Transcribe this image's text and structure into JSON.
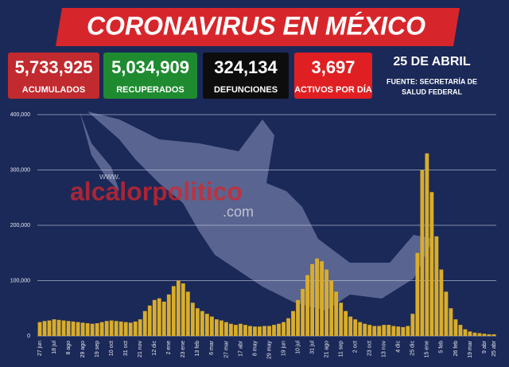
{
  "header": {
    "title": "CORONAVIRUS EN MÉXICO",
    "stats": [
      {
        "value": "5,733,925",
        "label": "ACUMULADOS"
      },
      {
        "value": "5,034,909",
        "label": "RECUPERADOS"
      },
      {
        "value": "324,134",
        "label": "DEFUNCIONES"
      },
      {
        "value": "3,697",
        "label": "ACTIVOS POR DÍA"
      }
    ],
    "date": "25 DE ABRIL",
    "source_lines": [
      "FUENTE: SECRETARÍA DE",
      "SALUD FEDERAL"
    ],
    "watermark": [
      "www.",
      "alcalorpolitico",
      ".com"
    ]
  },
  "chart_data": {
    "type": "bar",
    "color": "#d9ad2b",
    "grid": true,
    "ylim": [
      0,
      400000
    ],
    "yticks": [
      0,
      {
        "value": 100000,
        "label": "100,000"
      },
      {
        "value": 200000,
        "label": "200,000"
      },
      {
        "value": 300000,
        "label": "300,000"
      },
      {
        "value": 400000,
        "label": "400,000"
      }
    ],
    "categories": [
      "27 jun",
      null,
      null,
      "18 jul",
      null,
      null,
      "8 ago",
      null,
      null,
      "29 ago",
      null,
      null,
      "19 sep",
      null,
      null,
      "10 oct",
      null,
      null,
      "31 oct",
      null,
      null,
      "21 nov",
      null,
      null,
      "12 dic",
      null,
      null,
      "2 ene",
      null,
      null,
      "23 ene",
      null,
      null,
      "13 feb",
      null,
      null,
      "6 mar",
      null,
      null,
      "27 mar",
      null,
      null,
      "17 abr",
      null,
      null,
      "8 may",
      null,
      null,
      "29 may",
      null,
      null,
      "19 jun",
      null,
      null,
      "10 jul",
      null,
      null,
      "31 jul",
      null,
      null,
      "21 ago",
      null,
      null,
      "11 sep",
      null,
      null,
      "2 oct",
      null,
      null,
      "23 oct",
      null,
      null,
      "13 nov",
      null,
      null,
      "4 dic",
      null,
      null,
      "25 dic",
      null,
      null,
      "15 ene",
      null,
      null,
      "5 feb",
      null,
      null,
      "26 feb",
      null,
      null,
      "19 mar",
      null,
      null,
      "9 abr",
      null,
      "25 abr"
    ],
    "values": [
      25000,
      27000,
      28000,
      30000,
      29000,
      28000,
      27000,
      26000,
      25000,
      24000,
      23000,
      22000,
      23000,
      25000,
      27000,
      28000,
      27000,
      26000,
      25000,
      24000,
      26000,
      30000,
      45000,
      55000,
      65000,
      68000,
      62000,
      75000,
      90000,
      100000,
      95000,
      80000,
      60000,
      50000,
      45000,
      40000,
      35000,
      30000,
      28000,
      25000,
      22000,
      20000,
      22000,
      20000,
      18000,
      17000,
      17000,
      18000,
      18000,
      20000,
      22000,
      25000,
      32000,
      45000,
      65000,
      85000,
      110000,
      130000,
      140000,
      135000,
      120000,
      100000,
      80000,
      60000,
      45000,
      35000,
      30000,
      25000,
      22000,
      20000,
      18000,
      18000,
      20000,
      20000,
      18000,
      17000,
      16000,
      18000,
      40000,
      150000,
      300000,
      330000,
      260000,
      180000,
      120000,
      80000,
      50000,
      30000,
      20000,
      12000,
      8000,
      6000,
      5000,
      4000,
      3000,
      3000
    ]
  }
}
